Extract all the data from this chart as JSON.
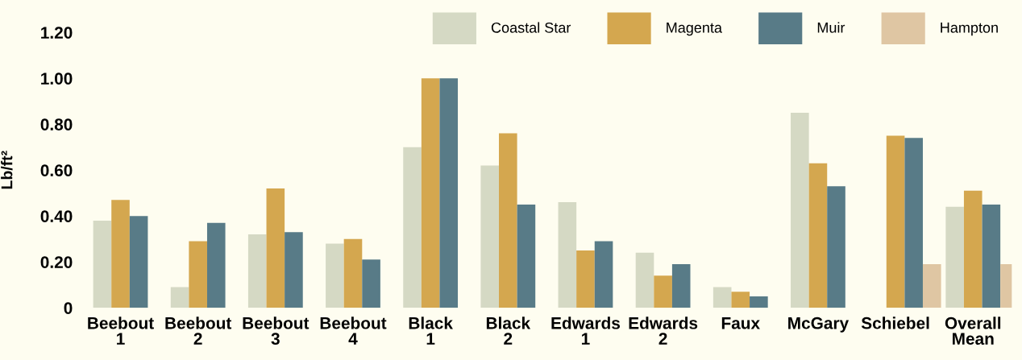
{
  "chart_data": {
    "type": "bar",
    "ylabel": "Lb/ft²",
    "categories": [
      "Beebout\n1",
      "Beebout\n2",
      "Beebout\n3",
      "Beebout\n4",
      "Black\n1",
      "Black\n2",
      "Edwards\n1",
      "Edwards\n2",
      "Faux",
      "McGary",
      "Schiebel",
      "Overall\nMean"
    ],
    "series": [
      {
        "name": "Coastal Star",
        "color": "#d5d9c4",
        "values": [
          0.38,
          0.09,
          0.32,
          0.28,
          0.7,
          0.62,
          0.46,
          0.24,
          0.09,
          0.85,
          null,
          0.44
        ]
      },
      {
        "name": "Magenta",
        "color": "#d4a74f",
        "values": [
          0.47,
          0.29,
          0.52,
          0.3,
          1.0,
          0.76,
          0.25,
          0.14,
          0.07,
          0.63,
          0.75,
          0.51
        ]
      },
      {
        "name": "Muir",
        "color": "#587b87",
        "values": [
          0.4,
          0.37,
          0.33,
          0.21,
          1.0,
          0.45,
          0.29,
          0.19,
          0.05,
          0.53,
          0.74,
          0.45
        ]
      },
      {
        "name": "Hampton",
        "color": "#dfc6a3",
        "values": [
          null,
          null,
          null,
          null,
          null,
          null,
          null,
          null,
          null,
          null,
          0.19,
          0.19
        ]
      }
    ],
    "ylim": [
      0,
      1.2
    ],
    "yticks": [
      0,
      {
        "value": 0.2,
        "label": "0.20"
      },
      {
        "value": 0.4,
        "label": "0.40"
      },
      {
        "value": 0.6,
        "label": "0.60"
      },
      {
        "value": 0.8,
        "label": "0.80"
      },
      {
        "value": 1.0,
        "label": "1.00"
      },
      {
        "value": 1.2,
        "label": "1.20"
      }
    ],
    "grid": false,
    "legend": "top right"
  }
}
